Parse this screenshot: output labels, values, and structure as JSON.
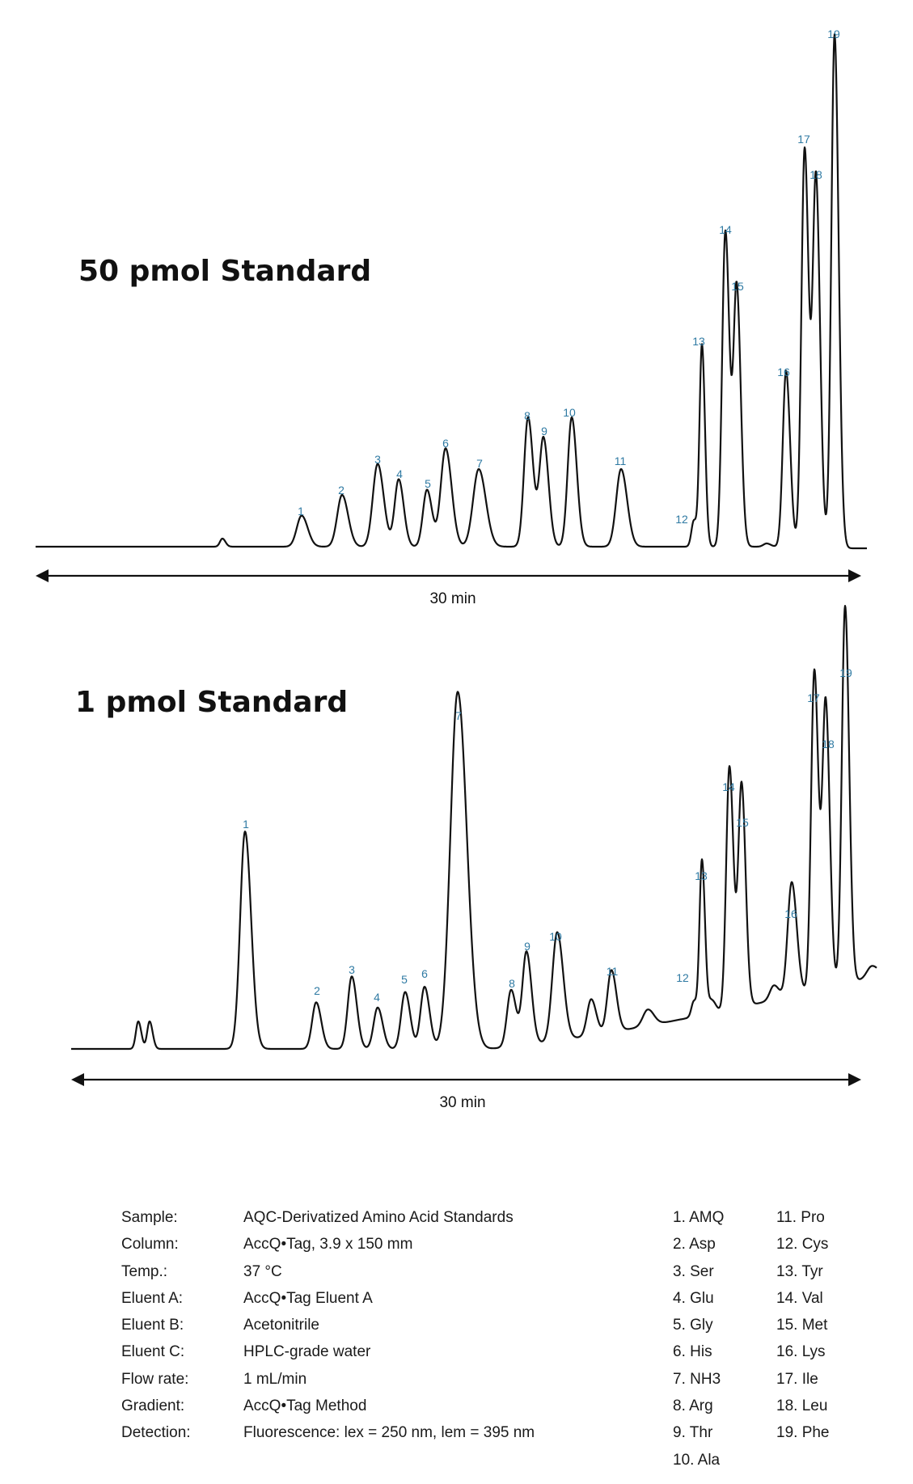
{
  "chart_data": [
    {
      "type": "line",
      "title": "50 pmol Standard",
      "xlabel": "30 min",
      "peak_labels": [
        "1",
        "2",
        "3",
        "4",
        "5",
        "6",
        "7",
        "8",
        "9",
        "10",
        "11",
        "12",
        "13",
        "14",
        "15",
        "16",
        "17",
        "18",
        "19"
      ],
      "peak_heights_relative": [
        0.06,
        0.1,
        0.16,
        0.13,
        0.11,
        0.19,
        0.15,
        0.25,
        0.21,
        0.25,
        0.15,
        0.05,
        0.39,
        0.61,
        0.5,
        0.34,
        0.77,
        0.71,
        0.99
      ],
      "baseline": "flat",
      "label_color": "#2f7aa3"
    },
    {
      "type": "line",
      "title": "1 pmol Standard",
      "xlabel": "30 min",
      "peak_labels": [
        "1",
        "2",
        "3",
        "4",
        "5",
        "6",
        "7",
        "8",
        "9",
        "10",
        "11",
        "12",
        "13",
        "14",
        "15",
        "16",
        "17",
        "18",
        "19"
      ],
      "peak_heights_relative": [
        0.42,
        0.09,
        0.14,
        0.08,
        0.11,
        0.12,
        0.69,
        0.11,
        0.18,
        0.21,
        0.12,
        0.03,
        0.3,
        0.47,
        0.43,
        0.22,
        0.62,
        0.55,
        0.73
      ],
      "baseline": "rising",
      "label_color": "#2f7aa3"
    }
  ],
  "conditions": [
    {
      "label": "Sample:",
      "value": "AQC-Derivatized Amino Acid Standards"
    },
    {
      "label": "Column:",
      "value": "AccQ•Tag, 3.9 x 150 mm"
    },
    {
      "label": "Temp.:",
      "value": "37 °C"
    },
    {
      "label": "Eluent A:",
      "value": "AccQ•Tag Eluent A"
    },
    {
      "label": "Eluent B:",
      "value": "Acetonitrile"
    },
    {
      "label": "Eluent C:",
      "value": "HPLC-grade water"
    },
    {
      "label": "Flow rate:",
      "value": "1 mL/min"
    },
    {
      "label": "Gradient:",
      "value": "AccQ•Tag Method"
    },
    {
      "label": "Detection:",
      "value": "Fluorescence: lex = 250 nm, lem = 395 nm"
    }
  ],
  "legend": {
    "col1": [
      "1. AMQ",
      "2. Asp",
      "3. Ser",
      "4. Glu",
      "5. Gly",
      "6. His",
      "7. NH3",
      "8. Arg",
      "9. Thr",
      "10. Ala"
    ],
    "col2": [
      "11. Pro",
      "12. Cys",
      "13. Tyr",
      "14. Val",
      "15. Met",
      "16. Lys",
      "17. Ile",
      "18. Leu",
      "19. Phe"
    ]
  }
}
